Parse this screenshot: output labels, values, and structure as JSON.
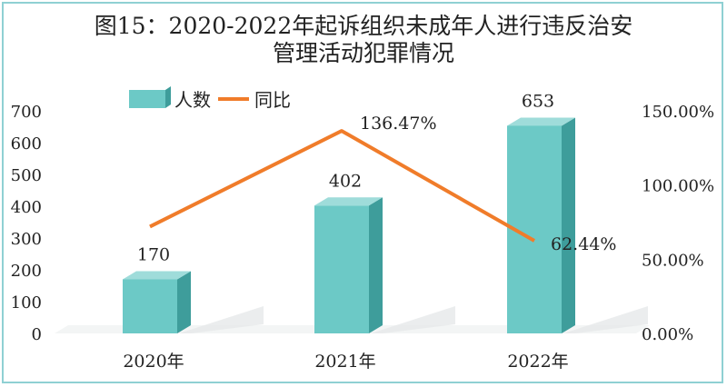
{
  "colors": {
    "bar_front": "#6cc9c6",
    "bar_side": "#3e9d9b",
    "bar_top": "#9fdcda",
    "line": "#f07c2a",
    "frame": "#8fd0d3"
  },
  "chart_data": {
    "type": "bar",
    "title_lines": [
      "图15：2020-2022年起诉组织未成年人进行违反治安",
      "管理活动犯罪情况"
    ],
    "categories": [
      "2020年",
      "2021年",
      "2022年"
    ],
    "series": [
      {
        "name": "人数",
        "type": "bar",
        "values": [
          170,
          402,
          653
        ],
        "labels": [
          "170",
          "402",
          "653"
        ]
      },
      {
        "name": "同比",
        "type": "line",
        "axis": "right",
        "values": [
          72.0,
          136.47,
          62.44
        ],
        "labels": [
          "",
          "136.47%",
          "62.44%"
        ]
      }
    ],
    "left_axis": {
      "ylim": [
        0,
        700
      ],
      "ticks": [
        "0",
        "100",
        "200",
        "300",
        "400",
        "500",
        "600",
        "700"
      ]
    },
    "right_axis": {
      "ylim": [
        0,
        150
      ],
      "ticks": [
        "0.00%",
        "50.00%",
        "100.00%",
        "150.00%"
      ]
    },
    "legend": {
      "placement": "top-left"
    },
    "grid": false
  }
}
